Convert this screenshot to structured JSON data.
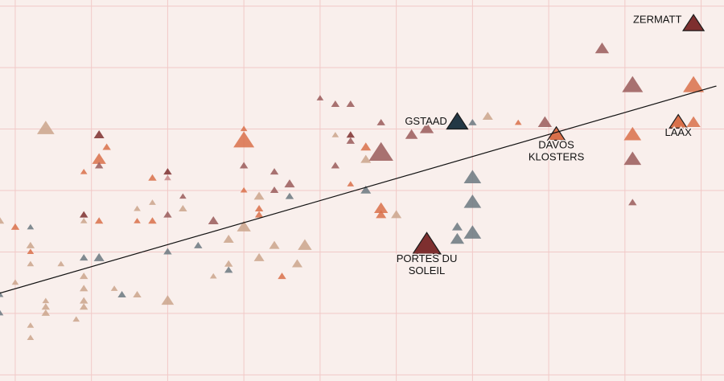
{
  "chart_data": {
    "type": "scatter",
    "title": "",
    "xlabel": "",
    "ylabel": "",
    "xlim": [
      -0.2,
      9.3
    ],
    "ylim": [
      -0.1,
      6.1
    ],
    "grid": true,
    "background": "#f9efec",
    "grid_color": "#f1c9c7",
    "trendline": {
      "x0": -0.2,
      "y0": 1.33,
      "x1": 9.2,
      "y1": 4.7,
      "color": "#111111"
    },
    "palette": {
      "dark_red": "#7e2f2f",
      "brown": "#9a5a5a",
      "orange": "#d9704a",
      "tan": "#cba58c",
      "slate": "#6b7880",
      "navy": "#233845",
      "pink": "#c98a8a"
    },
    "points": [
      {
        "x": 8.9,
        "y": 5.7,
        "size": 3,
        "c": "dark_red",
        "label": "ZERMATT"
      },
      {
        "x": 7.7,
        "y": 5.3,
        "size": 2,
        "c": "brown"
      },
      {
        "x": 8.1,
        "y": 4.7,
        "size": 3,
        "c": "brown"
      },
      {
        "x": 8.9,
        "y": 4.7,
        "size": 3,
        "c": "orange"
      },
      {
        "x": 8.7,
        "y": 4.1,
        "size": 2.5,
        "c": "orange",
        "label": "LAAX"
      },
      {
        "x": 8.9,
        "y": 4.1,
        "size": 2,
        "c": "orange"
      },
      {
        "x": 8.1,
        "y": 3.9,
        "size": 2.5,
        "c": "orange"
      },
      {
        "x": 8.1,
        "y": 3.5,
        "size": 2.5,
        "c": "brown"
      },
      {
        "x": 8.1,
        "y": 2.8,
        "size": 1.2,
        "c": "brown"
      },
      {
        "x": 7.1,
        "y": 3.9,
        "size": 2.5,
        "c": "orange",
        "label": "DAVOS KLOSTERS"
      },
      {
        "x": 6.95,
        "y": 4.1,
        "size": 2,
        "c": "brown"
      },
      {
        "x": 6.6,
        "y": 4.1,
        "size": 1,
        "c": "orange"
      },
      {
        "x": 6.2,
        "y": 4.2,
        "size": 1.5,
        "c": "tan"
      },
      {
        "x": 5.8,
        "y": 4.1,
        "size": 3,
        "c": "navy",
        "label": "GSTAAD"
      },
      {
        "x": 6.0,
        "y": 4.1,
        "size": 1.2,
        "c": "slate"
      },
      {
        "x": 5.4,
        "y": 4.0,
        "size": 2,
        "c": "brown"
      },
      {
        "x": 5.2,
        "y": 3.9,
        "size": 1.8,
        "c": "brown"
      },
      {
        "x": 4.8,
        "y": 4.1,
        "size": 1.2,
        "c": "brown"
      },
      {
        "x": 4.8,
        "y": 3.6,
        "size": 3.5,
        "c": "brown"
      },
      {
        "x": 4.6,
        "y": 3.7,
        "size": 1.5,
        "c": "orange"
      },
      {
        "x": 4.6,
        "y": 3.5,
        "size": 1.5,
        "c": "tan"
      },
      {
        "x": 4.2,
        "y": 4.4,
        "size": 1.2,
        "c": "brown"
      },
      {
        "x": 4.4,
        "y": 4.4,
        "size": 1.2,
        "c": "brown"
      },
      {
        "x": 4.0,
        "y": 4.5,
        "size": 1,
        "c": "brown"
      },
      {
        "x": 4.4,
        "y": 3.9,
        "size": 1.2,
        "c": "dark_red"
      },
      {
        "x": 4.2,
        "y": 3.9,
        "size": 1,
        "c": "tan"
      },
      {
        "x": 4.4,
        "y": 3.8,
        "size": 1.2,
        "c": "brown"
      },
      {
        "x": 4.2,
        "y": 3.4,
        "size": 1.2,
        "c": "brown"
      },
      {
        "x": 4.4,
        "y": 3.1,
        "size": 1,
        "c": "orange"
      },
      {
        "x": 4.6,
        "y": 3.0,
        "size": 1.5,
        "c": "slate"
      },
      {
        "x": 4.8,
        "y": 2.7,
        "size": 2,
        "c": "orange"
      },
      {
        "x": 4.8,
        "y": 2.6,
        "size": 1.5,
        "c": "orange"
      },
      {
        "x": 5.0,
        "y": 2.6,
        "size": 1.5,
        "c": "tan"
      },
      {
        "x": 5.4,
        "y": 2.1,
        "size": 4,
        "c": "dark_red",
        "label": "PORTES DU SOLEIL"
      },
      {
        "x": 6.0,
        "y": 3.2,
        "size": 2.5,
        "c": "slate"
      },
      {
        "x": 6.0,
        "y": 2.8,
        "size": 2.5,
        "c": "slate"
      },
      {
        "x": 5.8,
        "y": 2.4,
        "size": 1.5,
        "c": "slate"
      },
      {
        "x": 6.0,
        "y": 2.3,
        "size": 2.5,
        "c": "slate"
      },
      {
        "x": 5.8,
        "y": 2.2,
        "size": 2,
        "c": "slate"
      },
      {
        "x": 3.0,
        "y": 4.0,
        "size": 1,
        "c": "orange"
      },
      {
        "x": 3.0,
        "y": 3.8,
        "size": 3,
        "c": "orange"
      },
      {
        "x": 3.0,
        "y": 3.4,
        "size": 1.2,
        "c": "brown"
      },
      {
        "x": 3.4,
        "y": 3.3,
        "size": 1.2,
        "c": "brown"
      },
      {
        "x": 3.6,
        "y": 3.1,
        "size": 1.5,
        "c": "brown"
      },
      {
        "x": 3.4,
        "y": 3.0,
        "size": 1.2,
        "c": "brown"
      },
      {
        "x": 3.0,
        "y": 3.0,
        "size": 1,
        "c": "orange"
      },
      {
        "x": 3.6,
        "y": 2.9,
        "size": 1.2,
        "c": "slate"
      },
      {
        "x": 3.2,
        "y": 2.9,
        "size": 1.5,
        "c": "tan"
      },
      {
        "x": 3.2,
        "y": 2.7,
        "size": 1.2,
        "c": "orange"
      },
      {
        "x": 3.2,
        "y": 2.6,
        "size": 1.2,
        "c": "orange"
      },
      {
        "x": 3.0,
        "y": 2.4,
        "size": 2,
        "c": "tan"
      },
      {
        "x": 2.8,
        "y": 2.2,
        "size": 1.5,
        "c": "tan"
      },
      {
        "x": 2.6,
        "y": 2.5,
        "size": 1.5,
        "c": "brown"
      },
      {
        "x": 3.4,
        "y": 2.1,
        "size": 1.5,
        "c": "tan"
      },
      {
        "x": 3.2,
        "y": 1.9,
        "size": 1.5,
        "c": "tan"
      },
      {
        "x": 3.8,
        "y": 2.1,
        "size": 2,
        "c": "tan"
      },
      {
        "x": 3.7,
        "y": 1.8,
        "size": 1.5,
        "c": "tan"
      },
      {
        "x": 3.5,
        "y": 1.6,
        "size": 1.2,
        "c": "orange"
      },
      {
        "x": 2.8,
        "y": 1.8,
        "size": 1.2,
        "c": "tan"
      },
      {
        "x": 2.8,
        "y": 1.7,
        "size": 1.2,
        "c": "slate"
      },
      {
        "x": 2.4,
        "y": 2.1,
        "size": 1.2,
        "c": "slate"
      },
      {
        "x": 2.6,
        "y": 1.6,
        "size": 1,
        "c": "tan"
      },
      {
        "x": 2.2,
        "y": 2.7,
        "size": 1.2,
        "c": "tan"
      },
      {
        "x": 2.2,
        "y": 2.9,
        "size": 1,
        "c": "brown"
      },
      {
        "x": 2.0,
        "y": 3.3,
        "size": 1.2,
        "c": "dark_red"
      },
      {
        "x": 2.0,
        "y": 3.2,
        "size": 1,
        "c": "pink"
      },
      {
        "x": 1.8,
        "y": 3.2,
        "size": 1.2,
        "c": "orange"
      },
      {
        "x": 1.8,
        "y": 2.8,
        "size": 1,
        "c": "tan"
      },
      {
        "x": 2.0,
        "y": 2.6,
        "size": 1.2,
        "c": "brown"
      },
      {
        "x": 1.8,
        "y": 2.5,
        "size": 1.2,
        "c": "orange"
      },
      {
        "x": 1.6,
        "y": 2.7,
        "size": 1,
        "c": "tan"
      },
      {
        "x": 1.6,
        "y": 2.5,
        "size": 1,
        "c": "orange"
      },
      {
        "x": 2.0,
        "y": 2.0,
        "size": 1.2,
        "c": "slate"
      },
      {
        "x": 1.1,
        "y": 3.9,
        "size": 1.5,
        "c": "dark_red"
      },
      {
        "x": 1.2,
        "y": 3.7,
        "size": 1.2,
        "c": "orange"
      },
      {
        "x": 1.1,
        "y": 3.5,
        "size": 2,
        "c": "orange"
      },
      {
        "x": 1.1,
        "y": 3.4,
        "size": 1.2,
        "c": "brown"
      },
      {
        "x": 0.9,
        "y": 3.3,
        "size": 1,
        "c": "orange"
      },
      {
        "x": 0.9,
        "y": 2.6,
        "size": 1.2,
        "c": "dark_red"
      },
      {
        "x": 1.1,
        "y": 2.5,
        "size": 1.2,
        "c": "orange"
      },
      {
        "x": 0.9,
        "y": 2.5,
        "size": 1,
        "c": "tan"
      },
      {
        "x": 0.4,
        "y": 4.0,
        "size": 2.5,
        "c": "tan"
      },
      {
        "x": 1.1,
        "y": 1.9,
        "size": 1.5,
        "c": "slate"
      },
      {
        "x": 0.9,
        "y": 1.9,
        "size": 1.2,
        "c": "slate"
      },
      {
        "x": 0.6,
        "y": 1.8,
        "size": 1,
        "c": "tan"
      },
      {
        "x": 0.9,
        "y": 1.6,
        "size": 1.2,
        "c": "tan"
      },
      {
        "x": 0.9,
        "y": 1.4,
        "size": 1.2,
        "c": "tan"
      },
      {
        "x": 0.9,
        "y": 1.2,
        "size": 1.2,
        "c": "tan"
      },
      {
        "x": 0.9,
        "y": 1.1,
        "size": 1.2,
        "c": "tan"
      },
      {
        "x": 1.3,
        "y": 1.4,
        "size": 1,
        "c": "tan"
      },
      {
        "x": 1.4,
        "y": 1.3,
        "size": 1.2,
        "c": "slate"
      },
      {
        "x": 1.6,
        "y": 1.3,
        "size": 1.2,
        "c": "tan"
      },
      {
        "x": 2.0,
        "y": 1.2,
        "size": 1.8,
        "c": "tan"
      },
      {
        "x": 0.2,
        "y": 2.4,
        "size": 1,
        "c": "slate"
      },
      {
        "x": 0.2,
        "y": 2.1,
        "size": 1.2,
        "c": "tan"
      },
      {
        "x": 0.2,
        "y": 2.0,
        "size": 1,
        "c": "orange"
      },
      {
        "x": 0.2,
        "y": 1.8,
        "size": 1,
        "c": "tan"
      },
      {
        "x": 0.0,
        "y": 2.4,
        "size": 1.2,
        "c": "orange"
      },
      {
        "x": -0.2,
        "y": 2.5,
        "size": 1.2,
        "c": "tan"
      },
      {
        "x": 0.0,
        "y": 1.5,
        "size": 1,
        "c": "tan"
      },
      {
        "x": 0.4,
        "y": 1.2,
        "size": 1,
        "c": "tan"
      },
      {
        "x": 0.4,
        "y": 1.1,
        "size": 1.2,
        "c": "tan"
      },
      {
        "x": 0.4,
        "y": 1.0,
        "size": 1.2,
        "c": "tan"
      },
      {
        "x": 0.2,
        "y": 0.8,
        "size": 1,
        "c": "tan"
      },
      {
        "x": 0.2,
        "y": 0.6,
        "size": 1,
        "c": "tan"
      },
      {
        "x": 0.8,
        "y": 0.9,
        "size": 1,
        "c": "tan"
      },
      {
        "x": -0.2,
        "y": 1.0,
        "size": 1,
        "c": "slate"
      },
      {
        "x": -0.2,
        "y": 1.3,
        "size": 1,
        "c": "slate"
      }
    ]
  }
}
